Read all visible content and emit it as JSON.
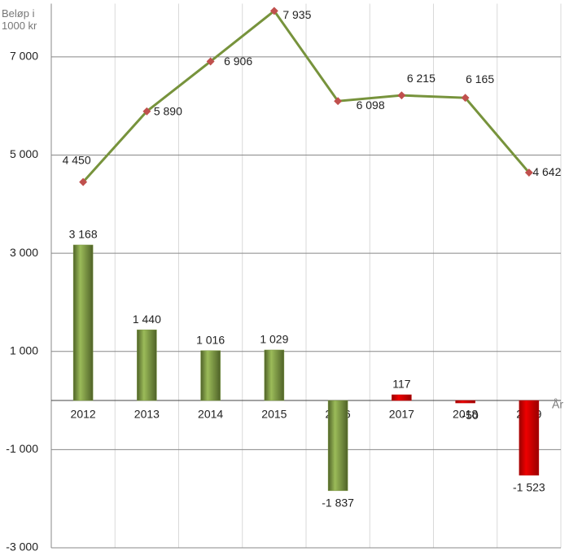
{
  "chart_data": {
    "type": "combo",
    "y_label": "Beløp i 1000 kr",
    "x_label": "År",
    "categories": [
      "2012",
      "2013",
      "2014",
      "2015",
      "2016",
      "2017",
      "2018",
      "2019"
    ],
    "ylim": [
      -3000,
      8000
    ],
    "yticks": [
      {
        "value": -3000,
        "label": "-3 000"
      },
      {
        "value": -1000,
        "label": "-1 000"
      },
      {
        "value": 1000,
        "label": "1 000"
      },
      {
        "value": 3000,
        "label": "3 000"
      },
      {
        "value": 5000,
        "label": "5 000"
      },
      {
        "value": 7000,
        "label": "7 000"
      }
    ],
    "grid": true,
    "series": [
      {
        "type": "bar",
        "values": [
          3168,
          1440,
          1016,
          1029,
          -1837,
          117,
          -50,
          -1523
        ],
        "value_labels": [
          "3 168",
          "1 440",
          "1 016",
          "1 029",
          "-1 837",
          "117",
          "-50",
          "-1 523"
        ],
        "colors": [
          "#77933c",
          "#77933c",
          "#77933c",
          "#77933c",
          "#77933c",
          "#c00000",
          "#c00000",
          "#c00000"
        ]
      },
      {
        "type": "line",
        "color": "#77933c",
        "marker_color": "#c0504d",
        "values": [
          4450,
          5890,
          6906,
          7935,
          6098,
          6215,
          6165,
          4642
        ],
        "value_labels": [
          "4 450",
          "5 890",
          "6 906",
          "7 935",
          "6 098",
          "6 215",
          "6 165",
          "4 642"
        ]
      }
    ]
  }
}
